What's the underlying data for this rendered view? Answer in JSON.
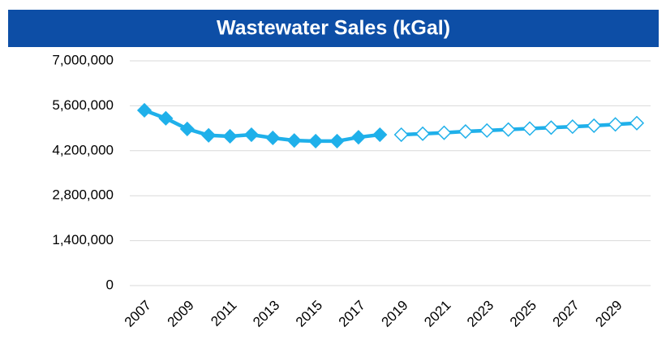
{
  "chart_data": {
    "type": "line",
    "title": "Wastewater Sales (kGal)",
    "x": [
      2007,
      2008,
      2009,
      2010,
      2011,
      2012,
      2013,
      2014,
      2015,
      2016,
      2017,
      2018,
      2019,
      2020,
      2021,
      2022,
      2023,
      2024,
      2025,
      2026,
      2027,
      2028,
      2029,
      2030
    ],
    "xlim": [
      2007,
      2030
    ],
    "xticks": [
      2007,
      2009,
      2011,
      2013,
      2015,
      2017,
      2019,
      2021,
      2023,
      2025,
      2027,
      2029
    ],
    "ylim": [
      0,
      7000000
    ],
    "yticks": [
      0,
      {
        "value": 1400000,
        "label": "1,400,000"
      },
      {
        "value": 2800000,
        "label": "2,800,000"
      },
      {
        "value": 4200000,
        "label": "4,200,000"
      },
      {
        "value": 5600000,
        "label": "5,600,000"
      },
      {
        "value": 7000000,
        "label": "7,000,000"
      }
    ],
    "grid": true,
    "series": [
      {
        "color": "#1fb0ea",
        "marker_fill": true,
        "values": [
          5460000,
          5210000,
          4880000,
          4680000,
          4650000,
          4700000,
          4600000,
          4520000,
          4500000,
          4500000,
          4620000,
          4700000,
          null,
          null,
          null,
          null,
          null,
          null,
          null,
          null,
          null,
          null,
          null,
          null
        ]
      },
      {
        "color": "#1fb0ea",
        "marker_fill": false,
        "values": [
          null,
          null,
          null,
          null,
          null,
          null,
          null,
          null,
          null,
          null,
          null,
          null,
          4700000,
          4730000,
          4760000,
          4800000,
          4830000,
          4860000,
          4890000,
          4920000,
          4950000,
          4980000,
          5020000,
          5060000
        ]
      }
    ]
  }
}
